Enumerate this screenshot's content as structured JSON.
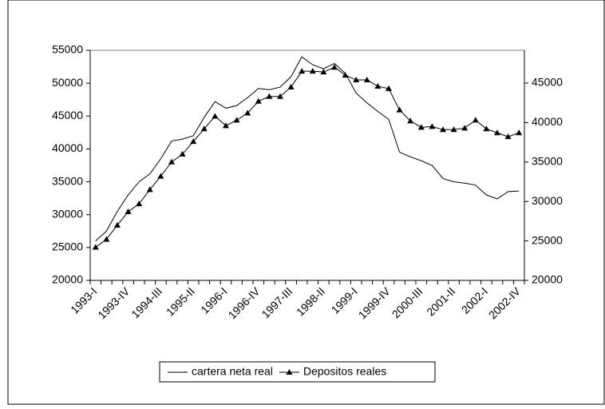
{
  "chart_data": {
    "type": "line",
    "categories": [
      "1993-I",
      null,
      null,
      "1993-IV",
      null,
      null,
      "1994-III",
      null,
      null,
      "1995-II",
      null,
      null,
      "1996-I",
      null,
      null,
      "1996-IV",
      null,
      null,
      "1997-III",
      null,
      null,
      "1998-II",
      null,
      null,
      "1999-I",
      null,
      null,
      "1999-IV",
      null,
      null,
      "2000-III",
      null,
      null,
      "2001-II",
      null,
      null,
      "2002-I",
      null,
      null,
      "2002-IV"
    ],
    "series": [
      {
        "name": "cartera neta real",
        "color": "#000000",
        "marker": "none",
        "values": [
          26000,
          27500,
          30500,
          33000,
          35000,
          36200,
          38500,
          41200,
          41500,
          42000,
          44800,
          47200,
          46200,
          46600,
          47800,
          49200,
          49000,
          49400,
          51000,
          54000,
          52800,
          52200,
          53000,
          51500,
          48500,
          47000,
          45700,
          44500,
          39500,
          38800,
          38200,
          37500,
          35500,
          35000,
          34800,
          34500,
          33000,
          32400,
          33500,
          33600
        ]
      },
      {
        "name": "Depositos reales",
        "color": "#000000",
        "marker": "triangle",
        "axis": "y2",
        "values": [
          24200,
          25200,
          27000,
          28700,
          29700,
          31500,
          33200,
          35000,
          36000,
          37600,
          39200,
          40800,
          39600,
          40300,
          41200,
          42700,
          43300,
          43300,
          44500,
          46500,
          46500,
          46400,
          47000,
          46000,
          45400,
          45400,
          44600,
          44300,
          41600,
          40200,
          39400,
          39500,
          39100,
          39100,
          39300,
          40300,
          39200,
          38700,
          38200,
          38700
        ]
      }
    ],
    "ylim": [
      20000,
      55000
    ],
    "yticks": [
      20000,
      25000,
      30000,
      35000,
      40000,
      45000,
      50000,
      55000
    ],
    "y2lim": [
      20000,
      49150
    ],
    "y2ticks": [
      20000,
      25000,
      30000,
      35000,
      40000,
      45000
    ],
    "grid": false,
    "legend": "bottom"
  }
}
